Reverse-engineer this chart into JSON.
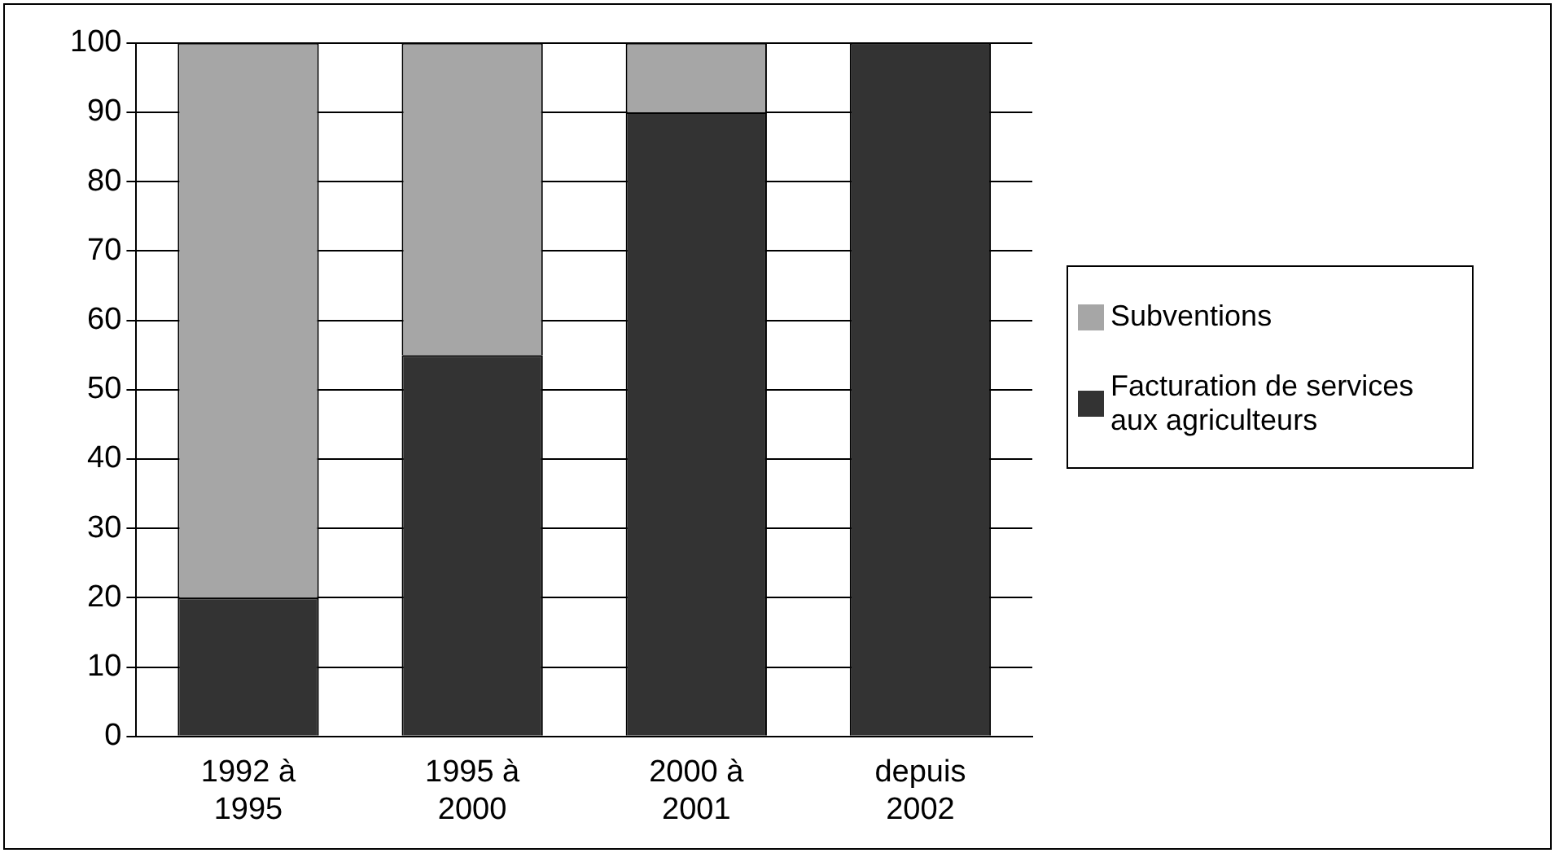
{
  "chart_data": {
    "type": "bar",
    "stacked": true,
    "categories": [
      "1992 à 1995",
      "1995 à 2000",
      "2000 à 2001",
      "depuis 2002"
    ],
    "series": [
      {
        "name": "Facturation de services aux agriculteurs",
        "color": "#333333",
        "values": [
          20,
          55,
          90,
          100
        ]
      },
      {
        "name": "Subventions",
        "color": "#a6a6a6",
        "values": [
          80,
          45,
          10,
          0
        ]
      }
    ],
    "ylim": [
      0,
      100
    ],
    "yticks": [
      0,
      10,
      20,
      30,
      40,
      50,
      60,
      70,
      80,
      90,
      100
    ],
    "grid": "y",
    "legend": "right"
  }
}
